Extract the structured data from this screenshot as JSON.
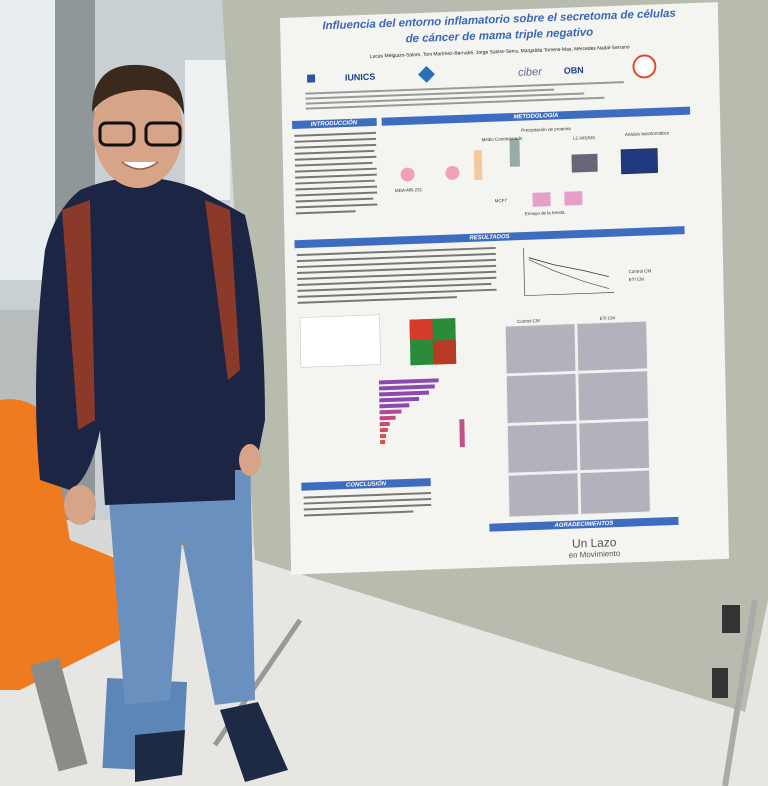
{
  "poster": {
    "title": [
      "Influencia del entorno inflamatorio sobre el secretoma de células",
      "de cáncer de mama triple negativo"
    ],
    "authors": "Lucas Melguizo-Salom, Toni Martínez-Bernabé, Jorge Sastre-Serra, Margalida Torrens-Mas, Mercedes Nadal-Serrano",
    "logos": [
      "IUNICS",
      "ciber",
      "OBN"
    ],
    "sections": {
      "introduction": "INTRODUCCIÓN",
      "methodology": "METODOLOGÍA",
      "results": "RESULTADOS",
      "conclusion": "CONCLUSIÓN",
      "acknowledgements": "AGRADECIMIENTOS"
    },
    "methods": [
      "Medio Condicionado",
      "Precipitación de proteína",
      "LC-MS/MS",
      "Análisis bioinformático",
      "MDA-MB-231",
      "MCF7",
      "Ensayo de la herida"
    ],
    "chart_legend": [
      "Control CM",
      "ETI CM"
    ],
    "microscopy_headers": [
      "Control CM",
      "ETI CM"
    ],
    "sponsor": [
      "Un Lazo",
      "en Movimiento"
    ]
  }
}
